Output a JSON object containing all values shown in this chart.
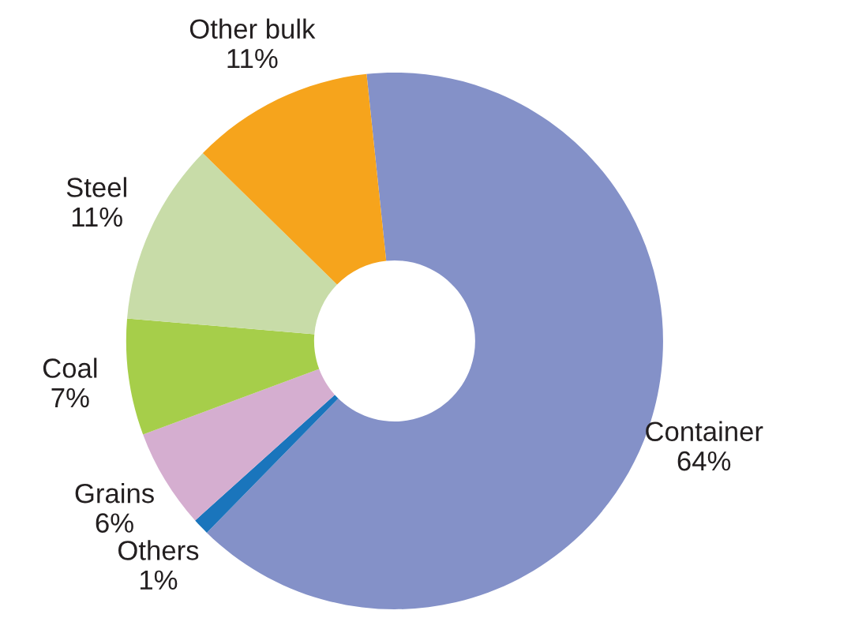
{
  "chart_data": {
    "type": "donut",
    "categories": [
      "Container",
      "Others",
      "Grains",
      "Coal",
      "Steel",
      "Other bulk"
    ],
    "values": [
      64,
      1,
      6,
      7,
      11,
      11
    ],
    "colors": [
      "#8491c8",
      "#1a75bc",
      "#d5aed0",
      "#a6ce4a",
      "#c8dca8",
      "#f6a41c"
    ],
    "value_labels": [
      "64%",
      "1%",
      "6%",
      "7%",
      "11%",
      "11%"
    ],
    "legend": false
  }
}
